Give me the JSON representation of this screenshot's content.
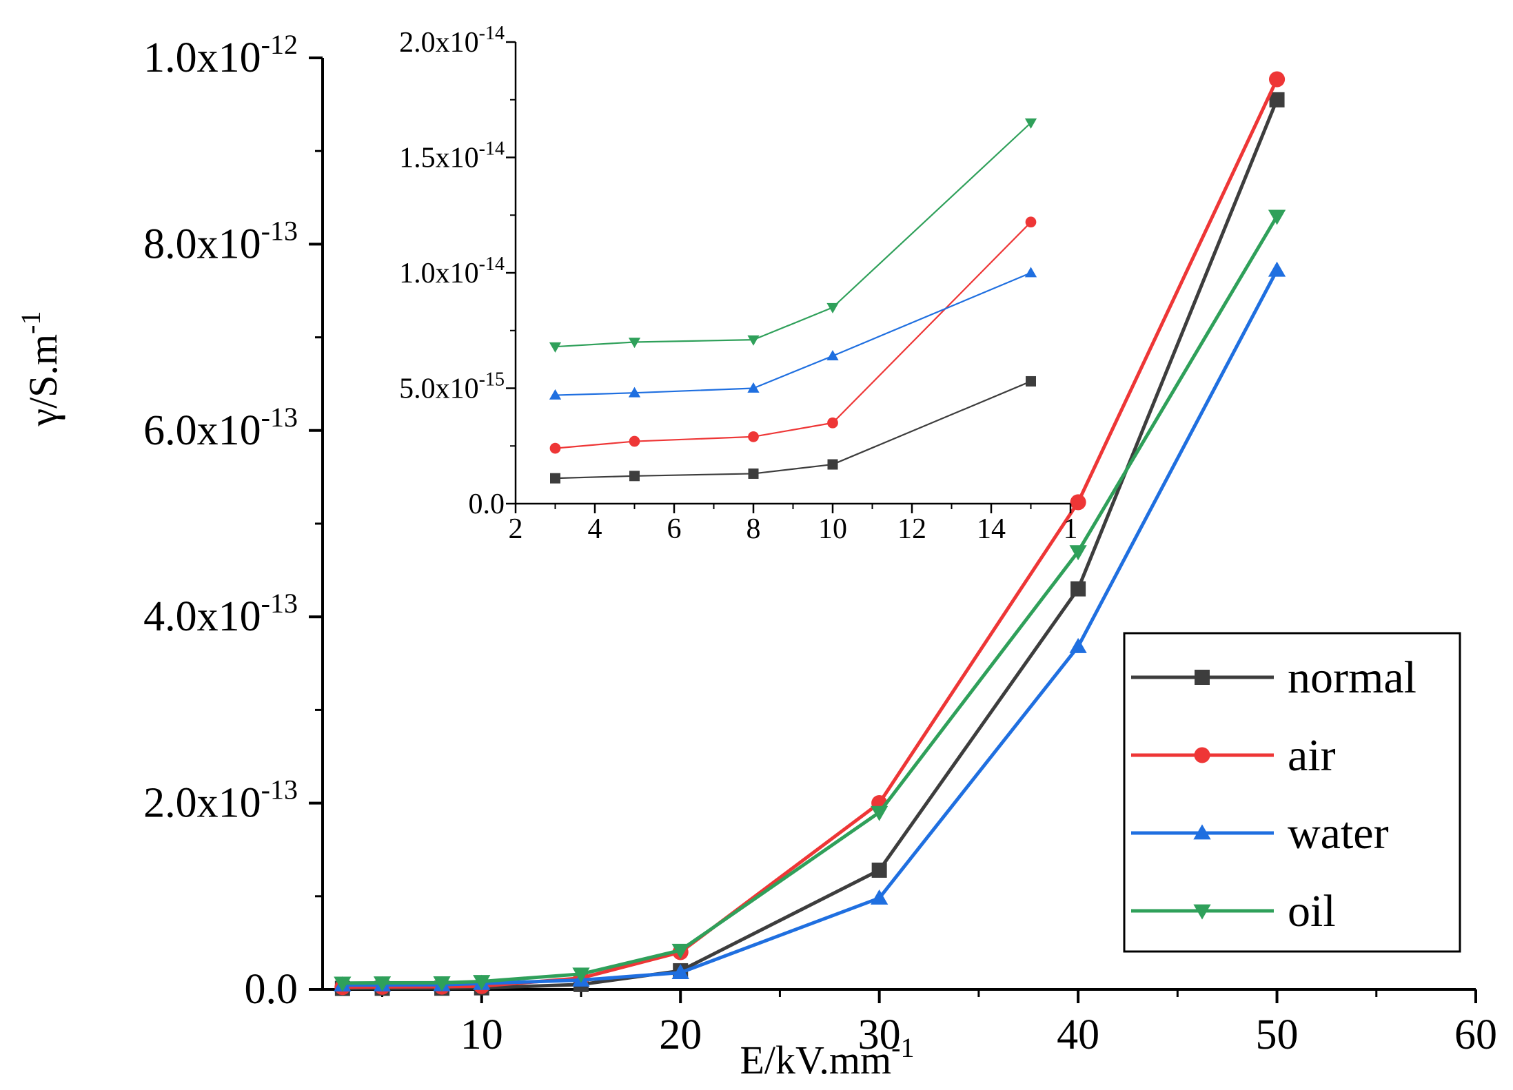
{
  "chart_data": [
    {
      "type": "line",
      "xlabel": "E/kV.mm",
      "xlabel_sup": "-1",
      "ylabel": "γ/S.m",
      "ylabel_sup": "-1",
      "xlim": [
        2,
        60
      ],
      "ylim": [
        0,
        1e-12
      ],
      "xticks": [
        10,
        20,
        30,
        40,
        50,
        60
      ],
      "yticks": [
        {
          "value": 0,
          "mantissa": "0.0",
          "exp": ""
        },
        {
          "value": 2e-13,
          "mantissa": "2.0x10",
          "exp": "-13"
        },
        {
          "value": 4e-13,
          "mantissa": "4.0x10",
          "exp": "-13"
        },
        {
          "value": 6e-13,
          "mantissa": "6.0x10",
          "exp": "-13"
        },
        {
          "value": 8e-13,
          "mantissa": "8.0x10",
          "exp": "-13"
        },
        {
          "value": 1e-12,
          "mantissa": "1.0x10",
          "exp": "-12"
        }
      ],
      "legend_position": "bottom-right",
      "x": [
        3,
        5,
        8,
        10,
        15,
        20,
        30,
        40,
        50
      ],
      "series": [
        {
          "name": "normal",
          "color": "#3d3d3d",
          "marker": "square",
          "values": [
            1.1e-15,
            1.2e-15,
            1.3e-15,
            1.7e-15,
            5.3e-15,
            2e-14,
            1.28e-13,
            4.3e-13,
            9.55e-13
          ]
        },
        {
          "name": "air",
          "color": "#ee3636",
          "marker": "circle",
          "values": [
            2.4e-15,
            2.7e-15,
            2.9e-15,
            3.5e-15,
            1.22e-14,
            4e-14,
            2e-13,
            5.23e-13,
            9.77e-13
          ]
        },
        {
          "name": "water",
          "color": "#1f6fe0",
          "marker": "triangle-up",
          "values": [
            4.7e-15,
            4.8e-15,
            5e-15,
            6.4e-15,
            1e-14,
            1.8e-14,
            9.8e-14,
            3.68e-13,
            7.72e-13
          ]
        },
        {
          "name": "oil",
          "color": "#2fa05a",
          "marker": "triangle-down",
          "values": [
            6.8e-15,
            7e-15,
            7.1e-15,
            8.5e-15,
            1.65e-14,
            4.2e-14,
            1.9e-13,
            4.7e-13,
            8.3e-13
          ]
        }
      ]
    },
    {
      "type": "line",
      "inset": true,
      "xlim": [
        2,
        16
      ],
      "ylim": [
        0,
        2e-14
      ],
      "xticks": [
        "2",
        "4",
        "6",
        "8",
        "10",
        "12",
        "14",
        "1"
      ],
      "yticks": [
        {
          "value": 0,
          "mantissa": "0.0",
          "exp": ""
        },
        {
          "value": 5e-15,
          "mantissa": "5.0x10",
          "exp": "-15"
        },
        {
          "value": 1e-14,
          "mantissa": "1.0x10",
          "exp": "-14"
        },
        {
          "value": 1.5e-14,
          "mantissa": "1.5x10",
          "exp": "-14"
        },
        {
          "value": 2e-14,
          "mantissa": "2.0x10",
          "exp": "-14"
        }
      ],
      "x": [
        3,
        5,
        8,
        10,
        15
      ],
      "series": [
        {
          "color": "#3d3d3d",
          "marker": "square",
          "values": [
            1.1e-15,
            1.2e-15,
            1.3e-15,
            1.7e-15,
            5.3e-15
          ]
        },
        {
          "color": "#ee3636",
          "marker": "circle",
          "values": [
            2.4e-15,
            2.7e-15,
            2.9e-15,
            3.5e-15,
            1.22e-14
          ]
        },
        {
          "color": "#1f6fe0",
          "marker": "triangle-up",
          "values": [
            4.7e-15,
            4.8e-15,
            5e-15,
            6.4e-15,
            1e-14
          ]
        },
        {
          "color": "#2fa05a",
          "marker": "triangle-down",
          "values": [
            6.8e-15,
            7e-15,
            7.1e-15,
            8.5e-15,
            1.65e-14
          ]
        }
      ]
    }
  ]
}
